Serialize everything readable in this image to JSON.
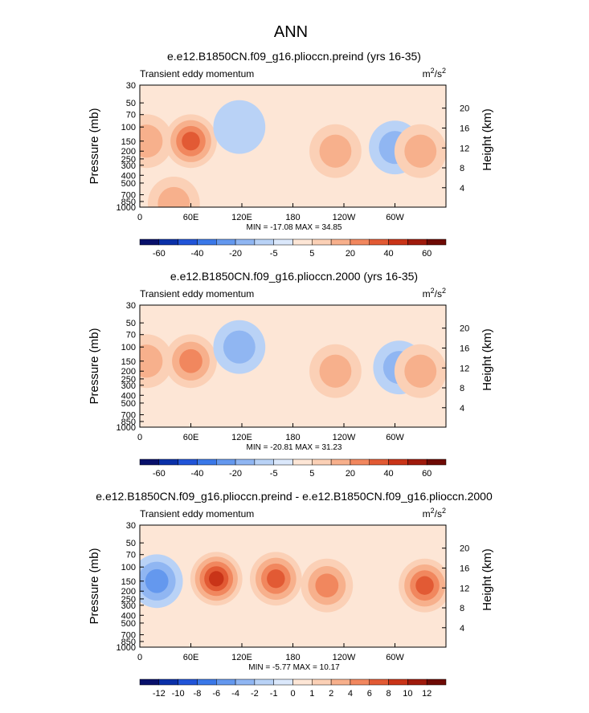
{
  "figure_title": "ANN",
  "chart_data": [
    {
      "type": "heatmap",
      "title": "e.e12.B1850CN.f09_g16.plioccn.preind (yrs 16-35)",
      "subtitle_left": "Transient eddy momentum",
      "units": "m²/s²",
      "unit_base": "m",
      "unit_exp1": "2",
      "unit_mid": "/s",
      "unit_exp2": "2",
      "xlabel": "",
      "ylabel": "Pressure (mb)",
      "y2label": "Height (km)",
      "x_ticks": [
        "0",
        "60E",
        "120E",
        "180",
        "120W",
        "60W"
      ],
      "y_ticks": [
        "30",
        "50",
        "70",
        "100",
        "150",
        "200",
        "250",
        "300",
        "400",
        "500",
        "700",
        "850",
        "1000"
      ],
      "y2_ticks": [
        "20",
        "16",
        "12",
        "8",
        "4"
      ],
      "stats": "MIN = -17.08   MAX =  34.85",
      "colorbar_levels": [
        -70,
        -60,
        -50,
        -40,
        -30,
        -20,
        -10,
        -5,
        0,
        5,
        10,
        20,
        30,
        40,
        50,
        60,
        70
      ],
      "colorbar_labels": [
        "-60",
        "-40",
        "-20",
        "-5",
        "5",
        "20",
        "40",
        "60"
      ],
      "min": -17.08,
      "max": 34.85,
      "features": [
        {
          "lon": 8,
          "p": 150,
          "value": 10
        },
        {
          "lon": 60,
          "p": 150,
          "value": 30
        },
        {
          "lon": 117,
          "p": 100,
          "value": -8
        },
        {
          "lon": 40,
          "p": 900,
          "value": 10
        },
        {
          "lon": 230,
          "p": 200,
          "value": 12
        },
        {
          "lon": 300,
          "p": 180,
          "value": -15
        },
        {
          "lon": 330,
          "p": 200,
          "value": 14
        }
      ]
    },
    {
      "type": "heatmap",
      "title": "e.e12.B1850CN.f09_g16.plioccn.2000 (yrs 16-35)",
      "subtitle_left": "Transient eddy momentum",
      "units": "m²/s²",
      "unit_base": "m",
      "unit_exp1": "2",
      "unit_mid": "/s",
      "unit_exp2": "2",
      "xlabel": "",
      "ylabel": "Pressure (mb)",
      "y2label": "Height (km)",
      "x_ticks": [
        "0",
        "60E",
        "120E",
        "180",
        "120W",
        "60W"
      ],
      "y_ticks": [
        "30",
        "50",
        "70",
        "100",
        "150",
        "200",
        "250",
        "300",
        "400",
        "500",
        "700",
        "850",
        "1000"
      ],
      "y2_ticks": [
        "20",
        "16",
        "12",
        "8",
        "4"
      ],
      "stats": "MIN = -20.81   MAX =  31.23",
      "colorbar_levels": [
        -70,
        -60,
        -50,
        -40,
        -30,
        -20,
        -10,
        -5,
        0,
        5,
        10,
        20,
        30,
        40,
        50,
        60,
        70
      ],
      "colorbar_labels": [
        "-60",
        "-40",
        "-20",
        "-5",
        "5",
        "20",
        "40",
        "60"
      ],
      "min": -20.81,
      "max": 31.23,
      "features": [
        {
          "lon": 8,
          "p": 150,
          "value": 12
        },
        {
          "lon": 60,
          "p": 150,
          "value": 28
        },
        {
          "lon": 117,
          "p": 100,
          "value": -12
        },
        {
          "lon": 230,
          "p": 200,
          "value": 14
        },
        {
          "lon": 305,
          "p": 180,
          "value": -18
        },
        {
          "lon": 330,
          "p": 200,
          "value": 10
        }
      ]
    },
    {
      "type": "heatmap",
      "title": "e.e12.B1850CN.f09_g16.plioccn.preind - e.e12.B1850CN.f09_g16.plioccn.2000",
      "subtitle_left": "Transient eddy momentum",
      "units": "m²/s²",
      "unit_base": "m",
      "unit_exp1": "2",
      "unit_mid": "/s",
      "unit_exp2": "2",
      "xlabel": "",
      "ylabel": "Pressure (mb)",
      "y2label": "Height (km)",
      "x_ticks": [
        "0",
        "60E",
        "120E",
        "180",
        "120W",
        "60W"
      ],
      "y_ticks": [
        "30",
        "50",
        "70",
        "100",
        "150",
        "200",
        "250",
        "300",
        "400",
        "500",
        "700",
        "850",
        "1000"
      ],
      "y2_ticks": [
        "20",
        "16",
        "12",
        "8",
        "4"
      ],
      "stats": "MIN =  -5.77   MAX =  10.17",
      "colorbar_levels": [
        -14,
        -12,
        -10,
        -8,
        -6,
        -4,
        -2,
        -1,
        0,
        1,
        2,
        4,
        6,
        8,
        10,
        12,
        14
      ],
      "colorbar_labels": [
        "-12",
        "-10",
        "-8",
        "-6",
        "-4",
        "-2",
        "-1",
        "0",
        "1",
        "2",
        "4",
        "6",
        "8",
        "10",
        "12"
      ],
      "min": -5.77,
      "max": 10.17,
      "features": [
        {
          "lon": 20,
          "p": 150,
          "value": -4
        },
        {
          "lon": 90,
          "p": 140,
          "value": 8
        },
        {
          "lon": 160,
          "p": 140,
          "value": 7
        },
        {
          "lon": 220,
          "p": 170,
          "value": 5
        },
        {
          "lon": 335,
          "p": 170,
          "value": 6
        }
      ]
    }
  ]
}
